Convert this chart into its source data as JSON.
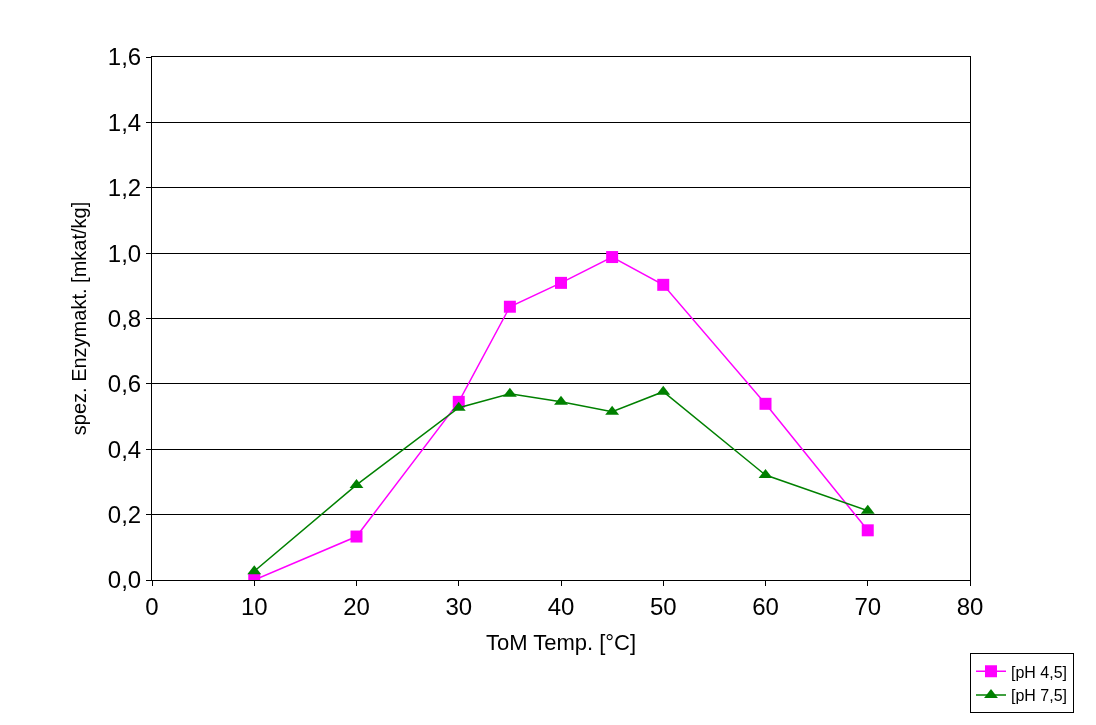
{
  "chart_data": {
    "type": "line",
    "xlabel": "ToM Temp. [°C]",
    "ylabel": "spez. Enzymakt. [mkat/kg]",
    "x": [
      10,
      20,
      30,
      35,
      40,
      45,
      50,
      60,
      70
    ],
    "series": [
      {
        "name": "[pH 4,5]",
        "color": "#ff00ff",
        "marker": "square",
        "values": [
          0.0,
          0.133,
          0.545,
          0.836,
          0.909,
          0.988,
          0.903,
          0.539,
          0.152
        ]
      },
      {
        "name": "[pH 7,5]",
        "color": "#008000",
        "marker": "triangle",
        "values": [
          0.027,
          0.291,
          0.527,
          0.57,
          0.545,
          0.515,
          0.576,
          0.321,
          0.212
        ]
      }
    ],
    "xlim": [
      0,
      80
    ],
    "xticks": [
      0,
      10,
      20,
      30,
      40,
      50,
      60,
      70,
      80
    ],
    "ylim": [
      0,
      1.6
    ],
    "yticks": [
      {
        "value": 0,
        "label": "0,0"
      },
      {
        "value": 0.2,
        "label": "0,2"
      },
      {
        "value": 0.4,
        "label": "0,4"
      },
      {
        "value": 0.6,
        "label": "0,6"
      },
      {
        "value": 0.8,
        "label": "0,8"
      },
      {
        "value": 1.0,
        "label": "1,0"
      },
      {
        "value": 1.2,
        "label": "1,2"
      },
      {
        "value": 1.4,
        "label": "1,4"
      },
      {
        "value": 1.6,
        "label": "1,6"
      }
    ],
    "grid": "y",
    "legend": "bottom right"
  }
}
